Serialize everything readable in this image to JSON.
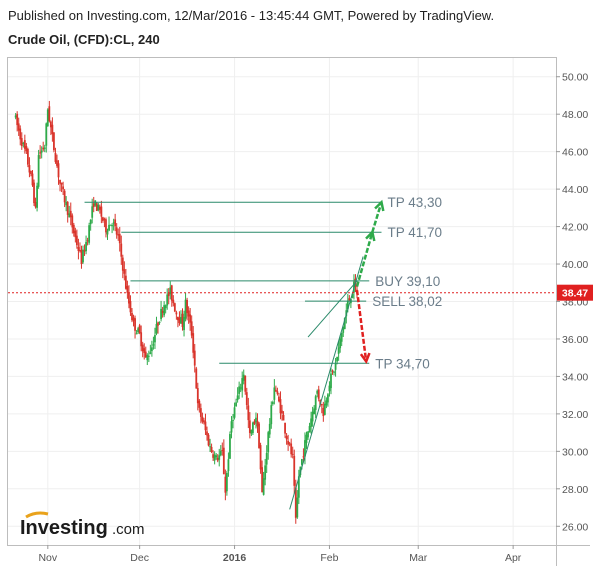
{
  "header": {
    "published": "Published on Investing.com, 12/Mar/2016 - 13:45:44 GMT, Powered by TradingView.",
    "symbol": "Crude Oil, (CFD):CL, 240"
  },
  "logo": {
    "brand": "Investing",
    "suffix": ".com"
  },
  "chart_data": {
    "type": "candlestick",
    "title": "Crude Oil, (CFD):CL, 240",
    "ylim": [
      25.0,
      51.0
    ],
    "y_ticks": [
      "50.00",
      "48.00",
      "46.00",
      "44.00",
      "42.00",
      "40.00",
      "38.00",
      "36.00",
      "34.00",
      "32.00",
      "30.00",
      "28.00",
      "26.00"
    ],
    "x_ticks": [
      "Nov",
      "Dec",
      "2016",
      "Feb",
      "Mar",
      "Apr"
    ],
    "x_tick_days": [
      0,
      30,
      61,
      92,
      121,
      152
    ],
    "current_price": {
      "label": "38.47",
      "value": 38.47,
      "color": "#e02020"
    },
    "price_path": [
      {
        "d": -11,
        "v": 48.0
      },
      {
        "d": -9,
        "v": 46.8
      },
      {
        "d": -7,
        "v": 45.8
      },
      {
        "d": -5,
        "v": 44.2
      },
      {
        "d": -4,
        "v": 42.8
      },
      {
        "d": -3,
        "v": 45.8
      },
      {
        "d": -1,
        "v": 46.3
      },
      {
        "d": 0,
        "v": 48.3
      },
      {
        "d": 2,
        "v": 46.2
      },
      {
        "d": 4,
        "v": 44.3
      },
      {
        "d": 7,
        "v": 42.6
      },
      {
        "d": 9,
        "v": 41.4
      },
      {
        "d": 11,
        "v": 40.2
      },
      {
        "d": 13,
        "v": 41.5
      },
      {
        "d": 15,
        "v": 43.3
      },
      {
        "d": 17,
        "v": 42.8
      },
      {
        "d": 19,
        "v": 41.9
      },
      {
        "d": 21,
        "v": 42.3
      },
      {
        "d": 23,
        "v": 41.4
      },
      {
        "d": 24,
        "v": 40.4
      },
      {
        "d": 26,
        "v": 38.3
      },
      {
        "d": 28,
        "v": 36.8
      },
      {
        "d": 30,
        "v": 36.2
      },
      {
        "d": 32,
        "v": 34.9
      },
      {
        "d": 34,
        "v": 35.6
      },
      {
        "d": 36,
        "v": 36.9
      },
      {
        "d": 38,
        "v": 37.9
      },
      {
        "d": 40,
        "v": 38.5
      },
      {
        "d": 42,
        "v": 37.4
      },
      {
        "d": 44,
        "v": 36.8
      },
      {
        "d": 45,
        "v": 37.9
      },
      {
        "d": 47,
        "v": 36.3
      },
      {
        "d": 48,
        "v": 34.6
      },
      {
        "d": 49,
        "v": 32.4
      },
      {
        "d": 51,
        "v": 31.4
      },
      {
        "d": 53,
        "v": 30.2
      },
      {
        "d": 55,
        "v": 29.6
      },
      {
        "d": 57,
        "v": 29.9
      },
      {
        "d": 58,
        "v": 27.9
      },
      {
        "d": 60,
        "v": 31.6
      },
      {
        "d": 62,
        "v": 32.9
      },
      {
        "d": 64,
        "v": 34.2
      },
      {
        "d": 65,
        "v": 32.4
      },
      {
        "d": 66,
        "v": 30.8
      },
      {
        "d": 68,
        "v": 31.9
      },
      {
        "d": 69,
        "v": 30.4
      },
      {
        "d": 70,
        "v": 27.7
      },
      {
        "d": 72,
        "v": 30.9
      },
      {
        "d": 74,
        "v": 33.5
      },
      {
        "d": 76,
        "v": 32.3
      },
      {
        "d": 78,
        "v": 30.8
      },
      {
        "d": 80,
        "v": 29.6
      },
      {
        "d": 81,
        "v": 26.2
      },
      {
        "d": 82,
        "v": 28.7
      },
      {
        "d": 84,
        "v": 30.4
      },
      {
        "d": 86,
        "v": 31.8
      },
      {
        "d": 88,
        "v": 33.2
      },
      {
        "d": 90,
        "v": 32.1
      },
      {
        "d": 92,
        "v": 33.7
      },
      {
        "d": 94,
        "v": 34.6
      },
      {
        "d": 96,
        "v": 36.3
      },
      {
        "d": 98,
        "v": 37.9
      },
      {
        "d": 100,
        "v": 38.8
      },
      {
        "d": 101,
        "v": 38.5
      }
    ],
    "levels": [
      {
        "label": "TP 43,30",
        "value": 43.3,
        "d1": 12,
        "d2": 109
      },
      {
        "label": "TP 41,70",
        "value": 41.7,
        "d1": 24,
        "d2": 109
      },
      {
        "label": "BUY 39,10",
        "value": 39.1,
        "d1": 27,
        "d2": 105
      },
      {
        "label": "SELL 38,02",
        "value": 38.02,
        "d1": 84,
        "d2": 104
      },
      {
        "label": "TP 34,70",
        "value": 34.7,
        "d1": 56,
        "d2": 105
      }
    ],
    "trendlines": [
      {
        "d1": 79,
        "v1": 26.9,
        "d2": 103,
        "v2": 40.4
      },
      {
        "d1": 85,
        "v1": 36.1,
        "d2": 101,
        "v2": 39.1
      }
    ],
    "arrows": [
      {
        "name": "up-arrow-tp1",
        "color": "#2eaa4a",
        "d1": 101,
        "v1": 38.8,
        "d2": 106,
        "v2": 41.7
      },
      {
        "name": "up-arrow-tp2",
        "color": "#2eaa4a",
        "d1": 106,
        "v1": 41.7,
        "d2": 109,
        "v2": 43.3
      },
      {
        "name": "down-arrow-tp",
        "color": "#e02020",
        "d1": 101,
        "v1": 38.6,
        "d2": 104,
        "v2": 34.8
      }
    ]
  }
}
